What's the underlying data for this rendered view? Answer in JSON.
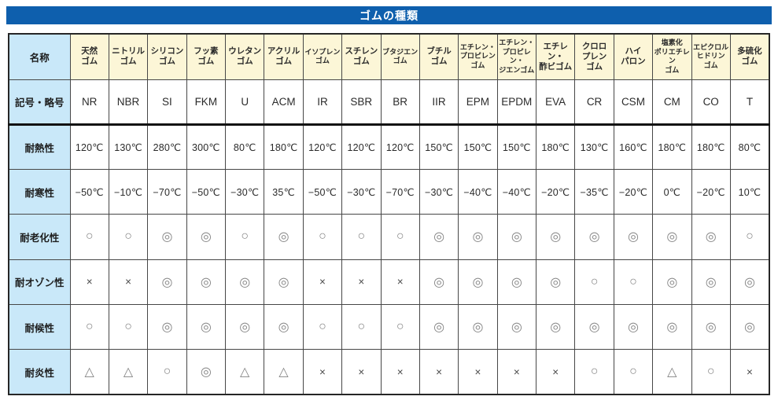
{
  "title": "ゴムの種類",
  "colors": {
    "title_bar_blue": "#0e5fad",
    "label_column_blue": "#c9e8f9",
    "header_row_cream": "#fcf6d7",
    "grid_line": "#474747",
    "thick_rule": "#111111"
  },
  "table": {
    "corner_label": "名称",
    "columns": [
      {
        "key": "natural",
        "name": [
          "天然",
          "ゴム"
        ],
        "small": false
      },
      {
        "key": "nitrile",
        "name": [
          "ニトリル",
          "ゴム"
        ],
        "small": false
      },
      {
        "key": "silicone",
        "name": [
          "シリコン",
          "ゴム"
        ],
        "small": false
      },
      {
        "key": "fluoro",
        "name": [
          "フッ素",
          "ゴム"
        ],
        "small": false
      },
      {
        "key": "urethane",
        "name": [
          "ウレタン",
          "ゴム"
        ],
        "small": false
      },
      {
        "key": "acrylic",
        "name": [
          "アクリル",
          "ゴム"
        ],
        "small": false
      },
      {
        "key": "isoprene",
        "name": [
          "イソプレン",
          "ゴム"
        ],
        "small": true
      },
      {
        "key": "styrene",
        "name": [
          "スチレン",
          "ゴム"
        ],
        "small": false
      },
      {
        "key": "butadiene",
        "name": [
          "ブタジエン",
          "ゴム"
        ],
        "small": true
      },
      {
        "key": "butyl",
        "name": [
          "ブチル",
          "ゴム"
        ],
        "small": false
      },
      {
        "key": "epm",
        "name": [
          "エチレン・",
          "プロピレン",
          "ゴム"
        ],
        "small": true
      },
      {
        "key": "epdm",
        "name": [
          "エチレン・",
          "プロピレン・",
          "ジエンゴム"
        ],
        "small": true
      },
      {
        "key": "eva",
        "name": [
          "エチレン・",
          "酢ビゴム"
        ],
        "small": false
      },
      {
        "key": "chloroprene",
        "name": [
          "クロロ",
          "プレン",
          "ゴム"
        ],
        "small": false
      },
      {
        "key": "hypalon",
        "name": [
          "ハイ",
          "パロン"
        ],
        "small": false
      },
      {
        "key": "chlorinated-pe",
        "name": [
          "塩素化",
          "ポリエチレン",
          "ゴム"
        ],
        "small": true
      },
      {
        "key": "epichlorohydrin",
        "name": [
          "エピクロル",
          "ヒドリン",
          "ゴム"
        ],
        "small": true
      },
      {
        "key": "polysulfide",
        "name": [
          "多硫化",
          "ゴム"
        ],
        "small": false
      }
    ],
    "rows": [
      {
        "key": "code",
        "label": "記号・略号",
        "type": "code",
        "values": [
          "NR",
          "NBR",
          "SI",
          "FKM",
          "U",
          "ACM",
          "IR",
          "SBR",
          "BR",
          "IIR",
          "EPM",
          "EPDM",
          "EVA",
          "CR",
          "CSM",
          "CM",
          "CO",
          "T"
        ]
      },
      {
        "key": "heat-resistance",
        "label": "耐熱性",
        "type": "temp",
        "values": [
          "120℃",
          "130℃",
          "280℃",
          "300℃",
          "80℃",
          "180℃",
          "120℃",
          "120℃",
          "120℃",
          "150℃",
          "150℃",
          "150℃",
          "180℃",
          "130℃",
          "160℃",
          "180℃",
          "180℃",
          "80℃"
        ]
      },
      {
        "key": "cold-resistance",
        "label": "耐寒性",
        "type": "temp",
        "values": [
          "−50℃",
          "−10℃",
          "−70℃",
          "−50℃",
          "−30℃",
          "35℃",
          "−50℃",
          "−30℃",
          "−70℃",
          "−30℃",
          "−40℃",
          "−40℃",
          "−20℃",
          "−35℃",
          "−20℃",
          "0℃",
          "−20℃",
          "10℃"
        ]
      },
      {
        "key": "aging-resistance",
        "label": "耐老化性",
        "type": "symbol",
        "values": [
          "○",
          "○",
          "◎",
          "◎",
          "○",
          "◎",
          "○",
          "○",
          "○",
          "◎",
          "◎",
          "◎",
          "◎",
          "◎",
          "◎",
          "◎",
          "◎",
          "○"
        ]
      },
      {
        "key": "ozone-resistance",
        "label": "耐オゾン性",
        "type": "symbol",
        "values": [
          "×",
          "×",
          "◎",
          "◎",
          "◎",
          "◎",
          "×",
          "×",
          "×",
          "◎",
          "◎",
          "◎",
          "◎",
          "○",
          "○",
          "◎",
          "◎",
          "◎"
        ]
      },
      {
        "key": "weather-resistance",
        "label": "耐候性",
        "type": "symbol",
        "values": [
          "○",
          "○",
          "◎",
          "◎",
          "◎",
          "◎",
          "○",
          "○",
          "○",
          "◎",
          "◎",
          "◎",
          "◎",
          "◎",
          "◎",
          "◎",
          "◎",
          "◎"
        ]
      },
      {
        "key": "flame-resistance",
        "label": "耐炎性",
        "type": "symbol",
        "values": [
          "△",
          "△",
          "○",
          "◎",
          "△",
          "△",
          "×",
          "×",
          "×",
          "×",
          "×",
          "×",
          "×",
          "○",
          "○",
          "△",
          "○",
          "×"
        ]
      }
    ]
  }
}
